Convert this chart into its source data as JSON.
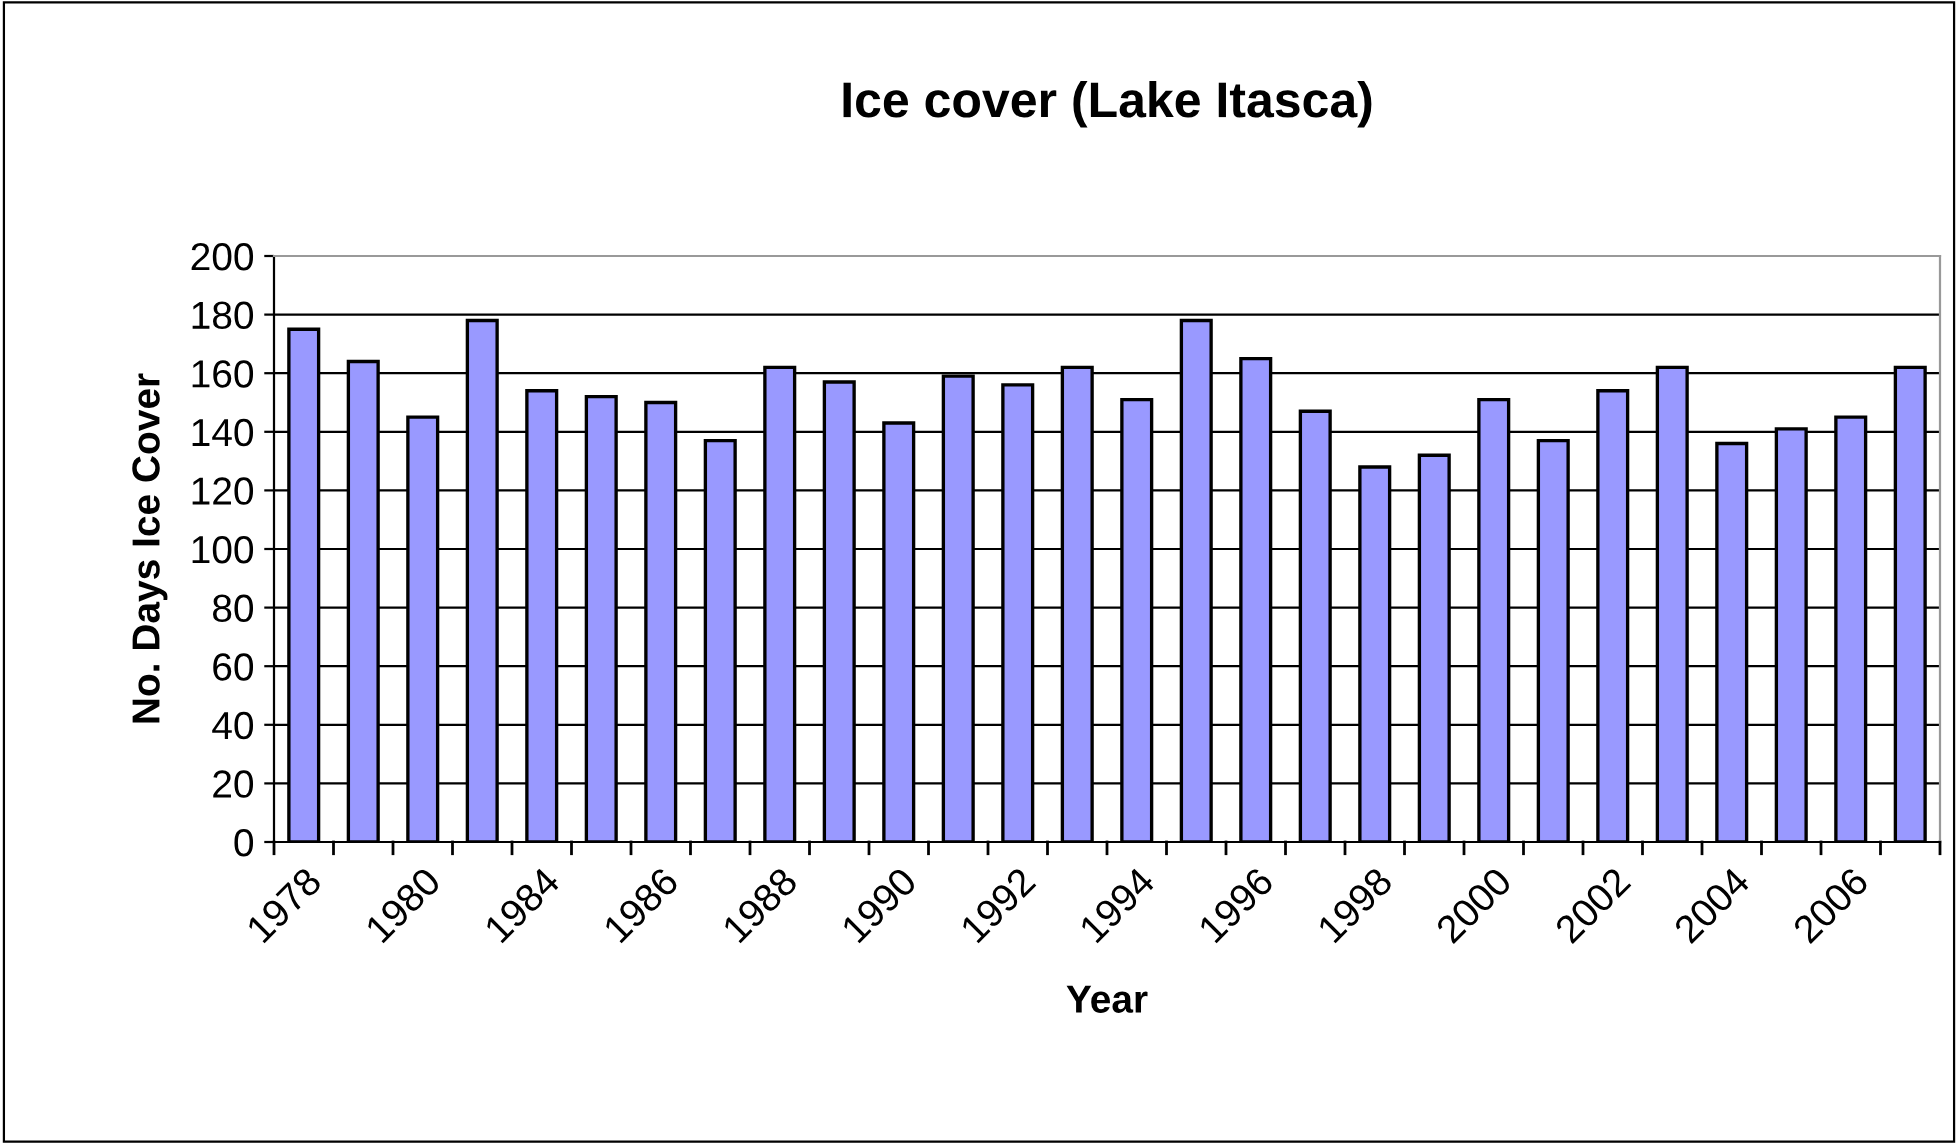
{
  "chart_data": {
    "type": "bar",
    "title": "Ice cover (Lake Itasca)",
    "xlabel": "Year",
    "ylabel": "No. Days Ice Cover",
    "categories": [
      "1978",
      null,
      "1980",
      null,
      "1984",
      null,
      "1986",
      null,
      "1988",
      null,
      "1990",
      null,
      "1992",
      null,
      "1994",
      null,
      "1996",
      null,
      "1998",
      null,
      "2000",
      null,
      "2002",
      null,
      "2004",
      null,
      "2006",
      null
    ],
    "values": [
      175,
      164,
      145,
      178,
      154,
      152,
      150,
      137,
      162,
      157,
      143,
      159,
      156,
      162,
      151,
      178,
      165,
      147,
      128,
      132,
      151,
      137,
      154,
      162,
      136,
      141,
      145,
      162
    ],
    "color": "#9999ff",
    "ylim": [
      0,
      200
    ],
    "yticks": [
      0,
      20,
      40,
      60,
      80,
      100,
      120,
      140,
      160,
      180,
      200
    ],
    "grid": "y"
  }
}
